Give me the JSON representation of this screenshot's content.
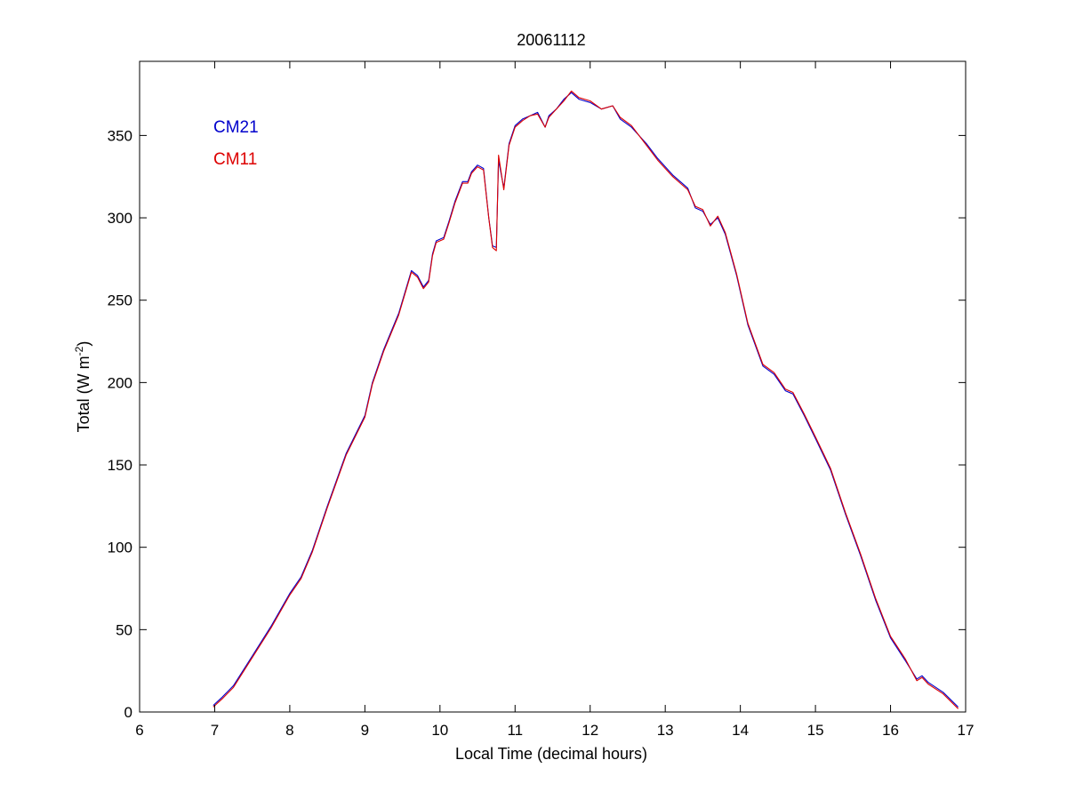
{
  "chart_data": {
    "type": "line",
    "title": "20061112",
    "xlabel": "Local Time (decimal hours)",
    "ylabel": {
      "prefix": "Total (W m",
      "superscript": "-2",
      "suffix": ")"
    },
    "xlim": [
      6,
      17
    ],
    "ylim": [
      0,
      395
    ],
    "xticks": [
      6,
      7,
      8,
      9,
      10,
      11,
      12,
      13,
      14,
      15,
      16,
      17
    ],
    "yticks": [
      0,
      50,
      100,
      150,
      200,
      250,
      300,
      350
    ],
    "grid": false,
    "legend_position": "top-left",
    "series": [
      {
        "name": "CM21",
        "color": "#0000cc",
        "offset_note": "",
        "x": [
          6.98,
          7.1,
          7.25,
          7.5,
          7.75,
          8.0,
          8.15,
          8.3,
          8.5,
          8.75,
          9.0,
          9.1,
          9.25,
          9.45,
          9.62,
          9.7,
          9.78,
          9.85,
          9.9,
          9.95,
          10.05,
          10.12,
          10.2,
          10.3,
          10.37,
          10.42,
          10.5,
          10.58,
          10.65,
          10.7,
          10.75,
          10.78,
          10.85,
          10.92,
          11.0,
          11.1,
          11.2,
          11.3,
          11.4,
          11.45,
          11.55,
          11.65,
          11.75,
          11.85,
          12.0,
          12.15,
          12.3,
          12.4,
          12.55,
          12.75,
          12.9,
          13.1,
          13.3,
          13.4,
          13.5,
          13.6,
          13.7,
          13.8,
          13.95,
          14.1,
          14.3,
          14.45,
          14.6,
          14.7,
          14.85,
          15.0,
          15.2,
          15.4,
          15.6,
          15.8,
          16.0,
          16.2,
          16.35,
          16.42,
          16.5,
          16.7,
          16.9
        ],
        "y": [
          4,
          9,
          16,
          34,
          52,
          72,
          82,
          98,
          125,
          157,
          180,
          200,
          220,
          242,
          268,
          265,
          258,
          262,
          278,
          286,
          288,
          298,
          310,
          322,
          322,
          328,
          332,
          330,
          300,
          283,
          282,
          335,
          318,
          345,
          356,
          360,
          362,
          364,
          355,
          362,
          366,
          372,
          376,
          372,
          370,
          366,
          368,
          360,
          355,
          345,
          336,
          326,
          318,
          306,
          304,
          296,
          300,
          290,
          265,
          235,
          210,
          205,
          195,
          193,
          180,
          166,
          147,
          120,
          95,
          68,
          45,
          31,
          20,
          22,
          18,
          12,
          3
        ]
      },
      {
        "name": "CM11",
        "color": "#dd0000",
        "x": [
          6.98,
          7.1,
          7.25,
          7.5,
          7.75,
          8.0,
          8.15,
          8.3,
          8.5,
          8.75,
          9.0,
          9.1,
          9.25,
          9.45,
          9.62,
          9.7,
          9.78,
          9.85,
          9.9,
          9.95,
          10.05,
          10.12,
          10.2,
          10.3,
          10.37,
          10.42,
          10.5,
          10.58,
          10.65,
          10.7,
          10.75,
          10.78,
          10.85,
          10.92,
          11.0,
          11.1,
          11.2,
          11.3,
          11.4,
          11.45,
          11.55,
          11.65,
          11.75,
          11.85,
          12.0,
          12.15,
          12.3,
          12.4,
          12.55,
          12.75,
          12.9,
          13.1,
          13.3,
          13.4,
          13.5,
          13.6,
          13.7,
          13.8,
          13.95,
          14.1,
          14.3,
          14.45,
          14.6,
          14.7,
          14.85,
          15.0,
          15.2,
          15.4,
          15.6,
          15.8,
          16.0,
          16.2,
          16.35,
          16.42,
          16.5,
          16.7,
          16.9
        ],
        "y": [
          3,
          8,
          15,
          33,
          51,
          71,
          81,
          97,
          124,
          156,
          179,
          199,
          219,
          241,
          267,
          264,
          257,
          261,
          277,
          285,
          287,
          297,
          309,
          321,
          321,
          327,
          331,
          329,
          300,
          282,
          280,
          338,
          317,
          344,
          355,
          359,
          362,
          363,
          355,
          361,
          366,
          371,
          377,
          373,
          371,
          366,
          368,
          361,
          356,
          344,
          335,
          325,
          317,
          307,
          305,
          295,
          301,
          291,
          266,
          236,
          211,
          206,
          196,
          194,
          181,
          167,
          148,
          121,
          96,
          69,
          46,
          32,
          19,
          21,
          17,
          11,
          2
        ]
      }
    ]
  }
}
